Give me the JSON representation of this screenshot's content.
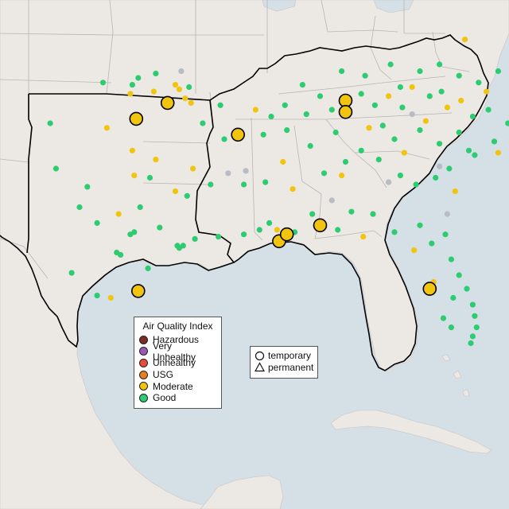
{
  "legend": {
    "title": "Air Quality Index",
    "categories": [
      {
        "label": "Hazardous",
        "color": "#7e2b27"
      },
      {
        "label": "Very Unhealthy",
        "color": "#9b59b6"
      },
      {
        "label": "Unhealthy",
        "color": "#e74c3c"
      },
      {
        "label": "USG",
        "color": "#e67e22"
      },
      {
        "label": "Moderate",
        "color": "#f1c40f"
      },
      {
        "label": "Good",
        "color": "#2ecc71"
      }
    ],
    "types": [
      {
        "label": "temporary",
        "shape": "circle-icon"
      },
      {
        "label": "permanent",
        "shape": "triangle-icon"
      }
    ]
  },
  "colors": {
    "water": "#d4dfe6",
    "land": "#ece8e4",
    "good": "#2ecc71",
    "moderate": "#f1c40f",
    "no_data": "#b8bcc4",
    "boundary": "#000000",
    "state_lines": "#b8b5b2"
  },
  "stations": {
    "large_moderate": [
      [
        -97.5,
        35.4
      ],
      [
        -95.9,
        36.1
      ],
      [
        -92.3,
        34.7
      ],
      [
        -90.2,
        30.0
      ],
      [
        -89.8,
        30.3
      ],
      [
        -88.1,
        30.7
      ],
      [
        -86.8,
        36.2
      ],
      [
        -86.8,
        35.7
      ],
      [
        -97.4,
        27.8
      ],
      [
        -82.5,
        27.9
      ]
    ],
    "moderate": [
      [
        -97.8,
        36.5
      ],
      [
        -96.6,
        36.6
      ],
      [
        -95.3,
        36.7
      ],
      [
        -95.5,
        36.9
      ],
      [
        -95.0,
        36.3
      ],
      [
        -94.7,
        36.1
      ],
      [
        -99.0,
        35.0
      ],
      [
        -97.7,
        34.0
      ],
      [
        -97.6,
        32.9
      ],
      [
        -98.4,
        31.2
      ],
      [
        -95.5,
        32.2
      ],
      [
        -98.8,
        27.5
      ],
      [
        -97.3,
        26.4
      ],
      [
        -91.4,
        35.8
      ],
      [
        -90.0,
        33.5
      ],
      [
        -89.5,
        32.3
      ],
      [
        -90.3,
        30.5
      ],
      [
        -87.0,
        32.9
      ],
      [
        -85.6,
        35.0
      ],
      [
        -84.6,
        36.4
      ],
      [
        -83.4,
        36.8
      ],
      [
        -83.8,
        33.9
      ],
      [
        -82.7,
        35.3
      ],
      [
        -81.6,
        35.9
      ],
      [
        -80.9,
        36.2
      ],
      [
        -79.6,
        36.6
      ],
      [
        -78.4,
        38.4
      ],
      [
        -76.9,
        39.1
      ],
      [
        -76.0,
        39.6
      ],
      [
        -79.0,
        33.9
      ],
      [
        -81.2,
        32.2
      ],
      [
        -85.9,
        30.2
      ],
      [
        -83.3,
        29.6
      ],
      [
        -82.3,
        28.2
      ],
      [
        -80.7,
        38.9
      ],
      [
        -96.5,
        33.6
      ],
      [
        -94.6,
        33.2
      ]
    ],
    "good": [
      [
        -99.2,
        37.0
      ],
      [
        -97.4,
        37.2
      ],
      [
        -97.7,
        36.9
      ],
      [
        -96.5,
        37.4
      ],
      [
        -94.8,
        36.8
      ],
      [
        -93.2,
        36.0
      ],
      [
        -94.1,
        35.2
      ],
      [
        -93.0,
        34.5
      ],
      [
        -91.0,
        34.7
      ],
      [
        -90.6,
        35.5
      ],
      [
        -89.0,
        36.9
      ],
      [
        -88.1,
        36.4
      ],
      [
        -87.0,
        37.5
      ],
      [
        -85.8,
        37.3
      ],
      [
        -84.5,
        37.8
      ],
      [
        -83.0,
        37.5
      ],
      [
        -82.0,
        37.8
      ],
      [
        -81.0,
        37.3
      ],
      [
        -80.0,
        37.0
      ],
      [
        -79.0,
        37.5
      ],
      [
        -78.0,
        36.9
      ],
      [
        -77.0,
        37.5
      ],
      [
        -76.4,
        37.0
      ],
      [
        -76.1,
        36.5
      ],
      [
        -77.5,
        35.5
      ],
      [
        -78.5,
        35.2
      ],
      [
        -79.5,
        35.8
      ],
      [
        -80.3,
        35.5
      ],
      [
        -81.0,
        34.8
      ],
      [
        -82.0,
        34.3
      ],
      [
        -83.0,
        34.9
      ],
      [
        -84.3,
        34.5
      ],
      [
        -85.1,
        33.6
      ],
      [
        -84.0,
        32.9
      ],
      [
        -83.2,
        32.5
      ],
      [
        -82.2,
        32.8
      ],
      [
        -81.5,
        33.2
      ],
      [
        -80.2,
        33.8
      ],
      [
        -79.2,
        34.4
      ],
      [
        -78.0,
        34.0
      ],
      [
        -86.0,
        34.0
      ],
      [
        -86.8,
        33.5
      ],
      [
        -87.9,
        33.0
      ],
      [
        -88.6,
        34.2
      ],
      [
        -89.8,
        34.9
      ],
      [
        -90.9,
        32.6
      ],
      [
        -92.0,
        32.5
      ],
      [
        -93.7,
        32.5
      ],
      [
        -94.9,
        32.0
      ],
      [
        -96.8,
        32.8
      ],
      [
        -97.3,
        31.5
      ],
      [
        -96.3,
        30.6
      ],
      [
        -95.4,
        29.8
      ],
      [
        -95.3,
        29.7
      ],
      [
        -95.1,
        29.8
      ],
      [
        -94.5,
        30.1
      ],
      [
        -93.3,
        30.2
      ],
      [
        -92.0,
        30.3
      ],
      [
        -91.2,
        30.5
      ],
      [
        -90.7,
        30.8
      ],
      [
        -89.4,
        30.4
      ],
      [
        -88.5,
        31.2
      ],
      [
        -87.2,
        30.5
      ],
      [
        -86.5,
        31.3
      ],
      [
        -85.4,
        31.2
      ],
      [
        -84.3,
        30.4
      ],
      [
        -83.0,
        30.7
      ],
      [
        -82.4,
        29.9
      ],
      [
        -81.7,
        30.3
      ],
      [
        -81.4,
        29.2
      ],
      [
        -81.0,
        28.5
      ],
      [
        -81.3,
        27.5
      ],
      [
        -80.6,
        27.9
      ],
      [
        -80.3,
        27.2
      ],
      [
        -80.2,
        26.7
      ],
      [
        -80.1,
        26.2
      ],
      [
        -80.3,
        25.8
      ],
      [
        -80.4,
        25.5
      ],
      [
        -81.8,
        26.6
      ],
      [
        -81.4,
        26.2
      ],
      [
        -98.5,
        29.5
      ],
      [
        -98.3,
        29.4
      ],
      [
        -97.8,
        30.3
      ],
      [
        -97.6,
        30.4
      ],
      [
        -96.9,
        28.8
      ],
      [
        -99.5,
        27.6
      ],
      [
        -97.4,
        25.9
      ],
      [
        -100.8,
        28.6
      ],
      [
        -101.6,
        33.2
      ],
      [
        -101.9,
        35.2
      ],
      [
        -100.0,
        32.4
      ],
      [
        -99.5,
        30.8
      ],
      [
        -100.4,
        31.5
      ],
      [
        -84.9,
        35.1
      ],
      [
        -85.3,
        36.0
      ],
      [
        -83.9,
        35.9
      ],
      [
        -82.5,
        36.4
      ],
      [
        -86.0,
        36.5
      ],
      [
        -87.5,
        35.8
      ],
      [
        -88.8,
        35.6
      ],
      [
        -89.9,
        36.0
      ],
      [
        -87.3,
        34.8
      ],
      [
        -84.0,
        36.8
      ],
      [
        -81.9,
        36.6
      ],
      [
        -80.5,
        34.0
      ],
      [
        -77.9,
        38.8
      ],
      [
        -77.3,
        38.6
      ],
      [
        -76.3,
        38.2
      ]
    ],
    "no_data": [
      [
        -95.2,
        37.5
      ],
      [
        -92.8,
        33.0
      ],
      [
        -87.5,
        31.8
      ],
      [
        -84.6,
        32.6
      ],
      [
        -81.6,
        31.2
      ],
      [
        -83.4,
        35.6
      ],
      [
        -82.0,
        33.3
      ],
      [
        -91.9,
        33.1
      ]
    ]
  }
}
